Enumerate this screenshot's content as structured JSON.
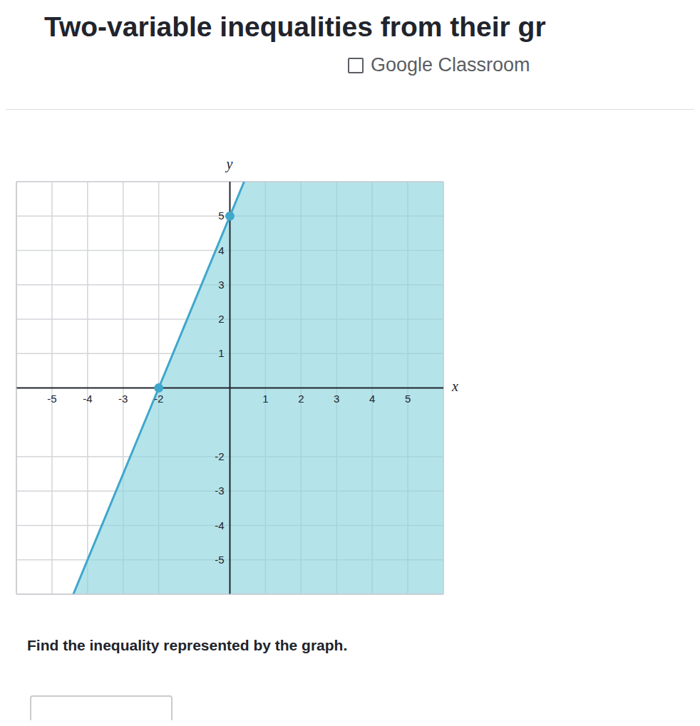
{
  "chart_data": {
    "type": "line",
    "title": "Two-variable inequalities from their gr",
    "subtitle": "Google Classroom",
    "x_label": "x",
    "y_label": "y",
    "annotations": [
      "Find the inequality represented by the graph."
    ],
    "xlim": [
      -6,
      6
    ],
    "ylim": [
      -6,
      6
    ],
    "xticks": [
      -5,
      -4,
      -3,
      -2,
      1,
      2,
      3,
      4,
      5
    ],
    "yticks": [
      -5,
      -4,
      -3,
      -2,
      1,
      2,
      3,
      4,
      5
    ],
    "grid": true,
    "series": [
      {
        "type": "area",
        "color": "#8ed4df",
        "x": [
          -4.4,
          -2,
          0,
          0.4,
          6
        ],
        "values": [
          -6,
          0,
          5,
          6,
          6
        ]
      },
      {
        "type": "line",
        "color": "#3fa7cb",
        "line_style": "solid",
        "marker": "none",
        "x": [
          -4.4,
          -2,
          0,
          0.4
        ],
        "values": [
          -6,
          0,
          5,
          6
        ]
      },
      {
        "type": "scatter",
        "color": "#3fa7cb",
        "marker": "circle",
        "x": [
          -2,
          0
        ],
        "values": [
          0,
          5
        ]
      }
    ]
  }
}
